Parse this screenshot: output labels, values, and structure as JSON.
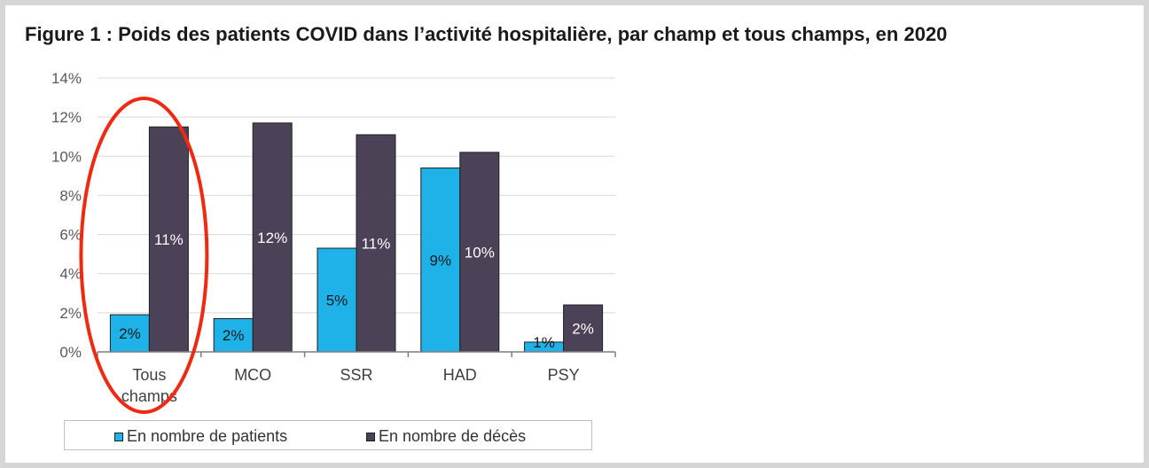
{
  "title": "Figure 1 : Poids des patients COVID dans l’activité hospitalière, par champ et tous champs, en 2020",
  "chart_data": {
    "type": "bar",
    "title": "Figure 1 : Poids des patients COVID dans l’activité hospitalière, par champ et tous champs, en 2020",
    "xlabel": "",
    "ylabel": "",
    "ylim": [
      0,
      14
    ],
    "yticks": [
      "0%",
      "2%",
      "4%",
      "6%",
      "8%",
      "10%",
      "12%",
      "14%"
    ],
    "grid": true,
    "categories": [
      "Tous champs",
      "MCO",
      "SSR",
      "HAD",
      "PSY"
    ],
    "category_lines": [
      [
        "Tous",
        "champs"
      ],
      [
        "MCO"
      ],
      [
        "SSR"
      ],
      [
        "HAD"
      ],
      [
        "PSY"
      ]
    ],
    "series": [
      {
        "name": "En nombre de patients",
        "color": "#1eb2e8",
        "values": [
          1.9,
          1.7,
          5.3,
          9.4,
          0.5
        ],
        "labels": [
          "2%",
          "2%",
          "5%",
          "9%",
          "1%"
        ]
      },
      {
        "name": "En nombre de décès",
        "color": "#4b4257",
        "values": [
          11.5,
          11.7,
          11.1,
          10.2,
          2.4
        ],
        "labels": [
          "11%",
          "12%",
          "11%",
          "10%",
          "2%"
        ]
      }
    ],
    "legend_position": "bottom",
    "annotation": {
      "type": "ellipse",
      "target": "Tous champs",
      "color": "#ee2a12"
    }
  }
}
